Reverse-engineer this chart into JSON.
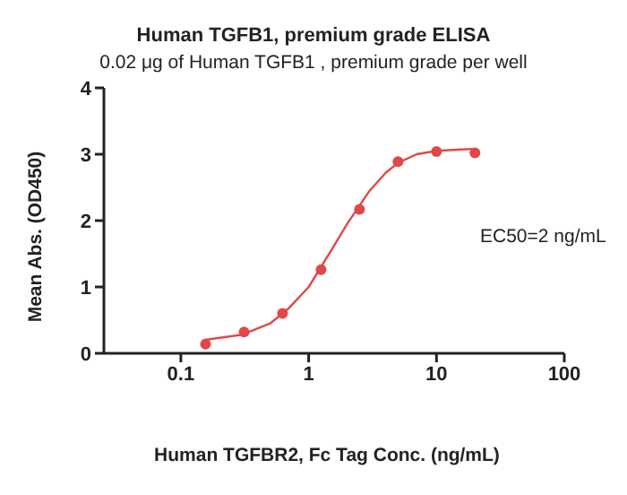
{
  "chart_data": {
    "type": "scatter",
    "title": "Human TGFB1, premium grade  ELISA",
    "subtitle": "0.02 μg of Human TGFB1 , premium grade per well",
    "xlabel": "Human TGFBR2, Fc Tag Conc. (ng/mL)",
    "ylabel": "Mean Abs. (OD450)",
    "annotations": [
      "EC50=2 ng/mL"
    ],
    "log": "x",
    "xlim": [
      0.025,
      100
    ],
    "xticks": [
      0.1,
      1,
      10,
      100
    ],
    "ylim": [
      0,
      4
    ],
    "yticks": [
      0,
      1,
      2,
      3,
      4
    ],
    "marker": "circle",
    "series": [
      {
        "color": "#e04848",
        "x": [
          0.156,
          0.3125,
          0.625,
          1.25,
          2.5,
          5,
          10,
          20
        ],
        "values": [
          0.14,
          0.32,
          0.6,
          1.26,
          2.17,
          2.89,
          3.04,
          3.02
        ]
      },
      {
        "type": "line",
        "color": "#e04848",
        "marker": "none",
        "line_style": "solid",
        "x": [
          0.15,
          0.3,
          0.5,
          0.7,
          1,
          1.5,
          2,
          3,
          4,
          5,
          7,
          10,
          15,
          20
        ],
        "values": [
          0.2,
          0.28,
          0.45,
          0.68,
          1.0,
          1.55,
          1.95,
          2.45,
          2.72,
          2.87,
          3.0,
          3.05,
          3.07,
          3.08
        ]
      }
    ]
  }
}
